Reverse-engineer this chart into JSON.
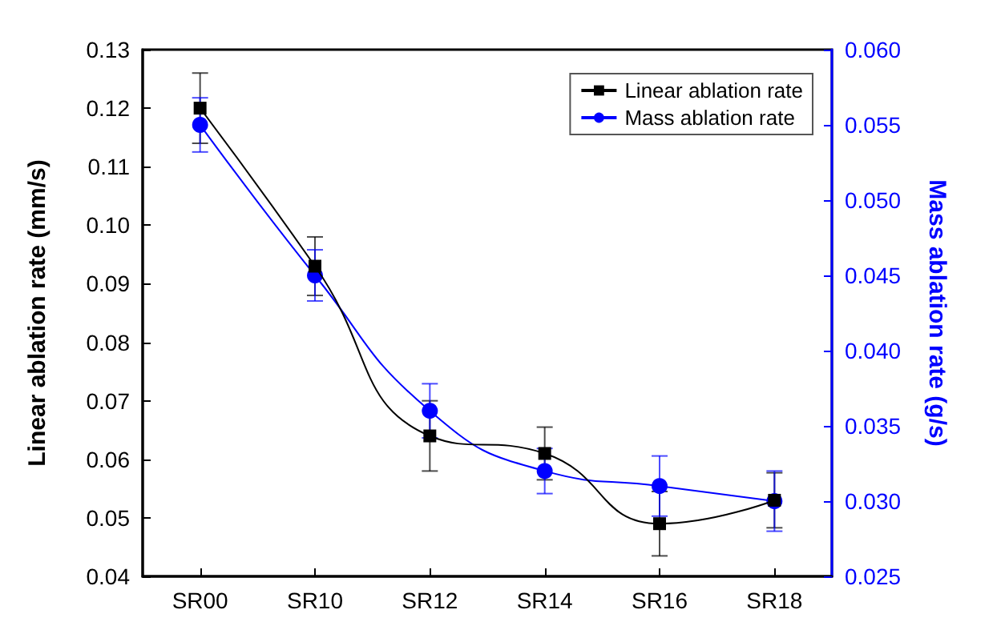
{
  "chart_data": {
    "type": "line",
    "categories": [
      "SR00",
      "SR10",
      "SR12",
      "SR14",
      "SR16",
      "SR18"
    ],
    "ylabel": "Linear ablation rate (mm/s)",
    "y2label": "Mass ablation rate (g/s)",
    "ylim": [
      0.04,
      0.13
    ],
    "yticks": [
      0.04,
      0.05,
      0.06,
      0.07,
      0.08,
      0.09,
      {
        "value": 0.1,
        "label": "0.10"
      },
      0.11,
      0.12,
      0.13
    ],
    "y2lim": [
      0.025,
      0.06
    ],
    "y2ticks": [
      0.025,
      {
        "value": 0.03,
        "label": "0.030"
      },
      0.035,
      {
        "value": 0.04,
        "label": "0.040"
      },
      0.045,
      {
        "value": 0.05,
        "label": "0.050"
      },
      0.055,
      {
        "value": 0.06,
        "label": "0.060"
      }
    ],
    "series": [
      {
        "name": "Linear ablation rate",
        "color": "#000000",
        "marker": "square",
        "values": [
          0.12,
          0.093,
          0.064,
          0.061,
          0.049,
          0.053
        ],
        "errors": [
          0.006,
          0.005,
          0.006,
          0.0045,
          0.0055,
          0.0047
        ]
      },
      {
        "name": "Mass ablation rate",
        "color": "#0000ff",
        "marker": "circle",
        "axis": "y2",
        "values": [
          0.055,
          0.045,
          0.036,
          0.032,
          0.031,
          0.03
        ],
        "errors": [
          0.0018,
          0.0017,
          0.0018,
          0.0015,
          0.002,
          0.002
        ]
      }
    ],
    "legend": "top right",
    "grid": false
  }
}
